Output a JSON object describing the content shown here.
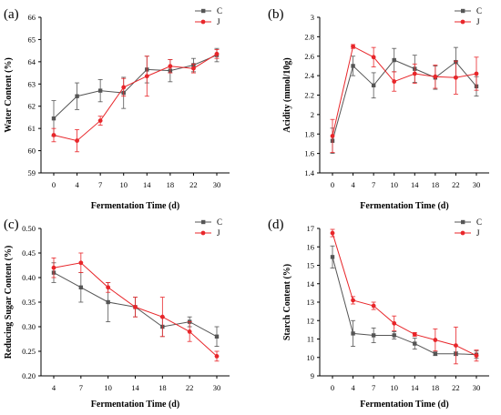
{
  "figure": {
    "colors": {
      "C": "#555555",
      "J": "#e8262a",
      "axis": "#000000"
    }
  },
  "chart_data": [
    {
      "panel": "(a)",
      "type": "line",
      "xlabel": "Fermentation Time (d)",
      "ylabel": "Water Content (%)",
      "categories": [
        "0",
        "4",
        "7",
        "10",
        "14",
        "18",
        "22",
        "30"
      ],
      "yticks": [
        59,
        60,
        61,
        62,
        63,
        64,
        65,
        66
      ],
      "ylim": [
        59,
        66
      ],
      "legend": "top-right",
      "series": [
        {
          "name": "C",
          "values": [
            61.45,
            62.45,
            62.7,
            62.6,
            63.65,
            63.6,
            63.85,
            64.3
          ],
          "errors": [
            0.8,
            0.6,
            0.5,
            0.7,
            0.6,
            0.5,
            0.3,
            0.3
          ]
        },
        {
          "name": "J",
          "values": [
            60.7,
            60.45,
            61.35,
            62.85,
            63.35,
            63.8,
            63.7,
            64.35
          ],
          "errors": [
            0.3,
            0.5,
            0.2,
            0.4,
            0.9,
            0.3,
            0.2,
            0.2
          ]
        }
      ]
    },
    {
      "panel": "(b)",
      "type": "line",
      "xlabel": "Fermentation Time (d)",
      "ylabel": "Acidity (mmol/10g)",
      "categories": [
        "0",
        "4",
        "7",
        "10",
        "14",
        "18",
        "22",
        "30"
      ],
      "yticks": [
        1.4,
        1.6,
        1.8,
        2.0,
        2.2,
        2.4,
        2.6,
        2.8,
        3.0
      ],
      "ylim": [
        1.4,
        3.0
      ],
      "legend": "top-right",
      "series": [
        {
          "name": "C",
          "values": [
            1.73,
            2.5,
            2.3,
            2.56,
            2.47,
            2.38,
            2.54,
            2.29
          ],
          "errors": [
            0.13,
            0.1,
            0.13,
            0.12,
            0.14,
            0.12,
            0.15,
            0.1
          ]
        },
        {
          "name": "J",
          "values": [
            1.78,
            2.7,
            2.59,
            2.34,
            2.42,
            2.39,
            2.38,
            2.42
          ],
          "errors": [
            0.17,
            0.02,
            0.1,
            0.1,
            0.1,
            0.12,
            0.17,
            0.17
          ]
        }
      ]
    },
    {
      "panel": "(c)",
      "type": "line",
      "xlabel": "Fermentation Time (d)",
      "ylabel": "Reducing Sugar Content (%)",
      "categories": [
        "4",
        "7",
        "10",
        "14",
        "18",
        "22",
        "30"
      ],
      "yticks": [
        "0.20",
        "0.25",
        "0.30",
        "0.35",
        "0.40",
        "0.45",
        "0.50"
      ],
      "ylim": [
        0.2,
        0.5
      ],
      "legend": "top-right",
      "series": [
        {
          "name": "C",
          "values": [
            0.41,
            0.38,
            0.35,
            0.34,
            0.3,
            0.31,
            0.28
          ],
          "errors": [
            0.02,
            0.03,
            0.04,
            0.02,
            0.02,
            0.01,
            0.02
          ]
        },
        {
          "name": "J",
          "values": [
            0.42,
            0.43,
            0.38,
            0.34,
            0.32,
            0.29,
            0.24
          ],
          "errors": [
            0.02,
            0.02,
            0.01,
            0.02,
            0.04,
            0.02,
            0.01
          ]
        }
      ]
    },
    {
      "panel": "(d)",
      "type": "line",
      "xlabel": "Fermentation Time (d)",
      "ylabel": "Starch Content (%)",
      "categories": [
        "0",
        "4",
        "7",
        "10",
        "14",
        "18",
        "22",
        "30"
      ],
      "yticks": [
        9,
        10,
        11,
        12,
        13,
        14,
        15,
        16,
        17
      ],
      "ylim": [
        9,
        17
      ],
      "legend": "top-right",
      "series": [
        {
          "name": "C",
          "values": [
            15.45,
            11.3,
            11.2,
            11.2,
            10.75,
            10.2,
            10.2,
            10.15
          ],
          "errors": [
            0.6,
            0.7,
            0.4,
            0.2,
            0.3,
            0.1,
            0.1,
            0.2
          ]
        },
        {
          "name": "J",
          "values": [
            16.75,
            13.1,
            12.8,
            11.85,
            11.25,
            10.95,
            10.65,
            10.1
          ],
          "errors": [
            0.2,
            0.2,
            0.2,
            0.4,
            0.1,
            0.6,
            1.0,
            0.3
          ]
        }
      ]
    }
  ]
}
